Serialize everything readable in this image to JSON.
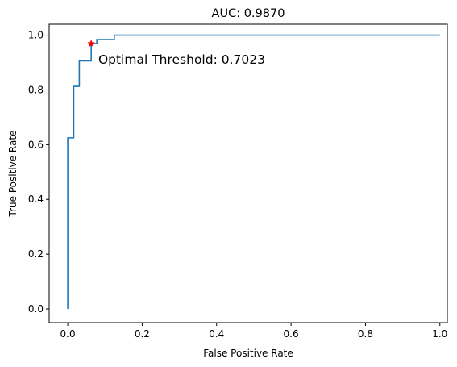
{
  "chart_data": {
    "type": "line",
    "title": "AUC: 0.9870",
    "xlabel": "False Positive Rate",
    "ylabel": "True Positive Rate",
    "xlim": [
      -0.05,
      1.02
    ],
    "ylim": [
      -0.05,
      1.04
    ],
    "xticks": [
      0.0,
      0.2,
      0.4,
      0.6,
      0.8,
      1.0
    ],
    "xtick_labels": [
      "0.0",
      "0.2",
      "0.4",
      "0.6",
      "0.8",
      "1.0"
    ],
    "yticks": [
      0.0,
      0.2,
      0.4,
      0.6,
      0.8,
      1.0
    ],
    "ytick_labels": [
      "0.0",
      "0.2",
      "0.4",
      "0.6",
      "0.8",
      "1.0"
    ],
    "grid": false,
    "series": [
      {
        "color": "#1f77b4",
        "step": true,
        "points": [
          [
            0.0,
            0.0
          ],
          [
            0.0,
            0.625
          ],
          [
            0.016,
            0.625
          ],
          [
            0.016,
            0.813
          ],
          [
            0.031,
            0.813
          ],
          [
            0.031,
            0.906
          ],
          [
            0.063,
            0.906
          ],
          [
            0.063,
            0.969
          ],
          [
            0.078,
            0.969
          ],
          [
            0.078,
            0.984
          ],
          [
            0.125,
            0.984
          ],
          [
            0.125,
            1.0
          ],
          [
            1.0,
            1.0
          ]
        ]
      }
    ],
    "optimal_point": {
      "x": 0.063,
      "y": 0.969,
      "color": "#ff0000",
      "marker": "star"
    },
    "annotation": {
      "text": "Optimal Threshold: 0.7023",
      "x": 0.082,
      "y": 0.91
    }
  }
}
